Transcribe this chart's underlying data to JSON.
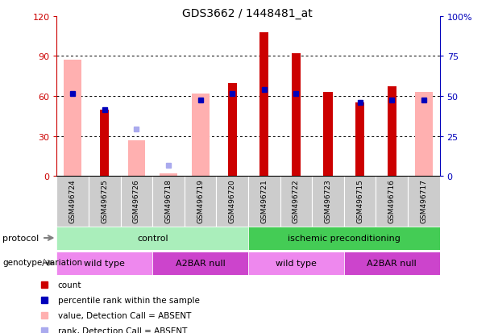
{
  "title": "GDS3662 / 1448481_at",
  "samples": [
    "GSM496724",
    "GSM496725",
    "GSM496726",
    "GSM496718",
    "GSM496719",
    "GSM496720",
    "GSM496721",
    "GSM496722",
    "GSM496723",
    "GSM496715",
    "GSM496716",
    "GSM496717"
  ],
  "red_bars": [
    null,
    50,
    null,
    null,
    null,
    70,
    108,
    92,
    63,
    55,
    67,
    null
  ],
  "pink_bars": [
    87,
    null,
    27,
    2,
    62,
    null,
    null,
    null,
    null,
    null,
    null,
    63
  ],
  "blue_squares": [
    62,
    50,
    null,
    null,
    57,
    62,
    65,
    62,
    null,
    55,
    57,
    57
  ],
  "light_blue_squares": [
    null,
    null,
    35,
    8,
    null,
    null,
    null,
    null,
    null,
    null,
    null,
    null
  ],
  "ylim": [
    0,
    120
  ],
  "y2lim": [
    0,
    100
  ],
  "yticks": [
    0,
    30,
    60,
    90,
    120
  ],
  "y2ticks": [
    0,
    25,
    50,
    75,
    100
  ],
  "ytick_labels": [
    "0",
    "30",
    "60",
    "90",
    "120"
  ],
  "y2tick_labels": [
    "0",
    "25",
    "50",
    "75",
    "100%"
  ],
  "red_color": "#CC0000",
  "pink_color": "#FFB0B0",
  "blue_color": "#0000BB",
  "light_blue_color": "#AAAAEE",
  "cell_color": "#CCCCCC",
  "protocol_groups": [
    {
      "label": "control",
      "start": 0,
      "end": 5,
      "color": "#AAEEBB"
    },
    {
      "label": "ischemic preconditioning",
      "start": 6,
      "end": 11,
      "color": "#44CC55"
    }
  ],
  "genotype_groups": [
    {
      "label": "wild type",
      "start": 0,
      "end": 2,
      "color": "#EE88EE"
    },
    {
      "label": "A2BAR null",
      "start": 3,
      "end": 5,
      "color": "#CC44CC"
    },
    {
      "label": "wild type",
      "start": 6,
      "end": 8,
      "color": "#EE88EE"
    },
    {
      "label": "A2BAR null",
      "start": 9,
      "end": 11,
      "color": "#CC44CC"
    }
  ],
  "legend_items": [
    {
      "label": "count",
      "color": "#CC0000"
    },
    {
      "label": "percentile rank within the sample",
      "color": "#0000BB"
    },
    {
      "label": "value, Detection Call = ABSENT",
      "color": "#FFB0B0"
    },
    {
      "label": "rank, Detection Call = ABSENT",
      "color": "#AAAAEE"
    }
  ],
  "fig_width": 6.13,
  "fig_height": 4.14,
  "dpi": 100
}
